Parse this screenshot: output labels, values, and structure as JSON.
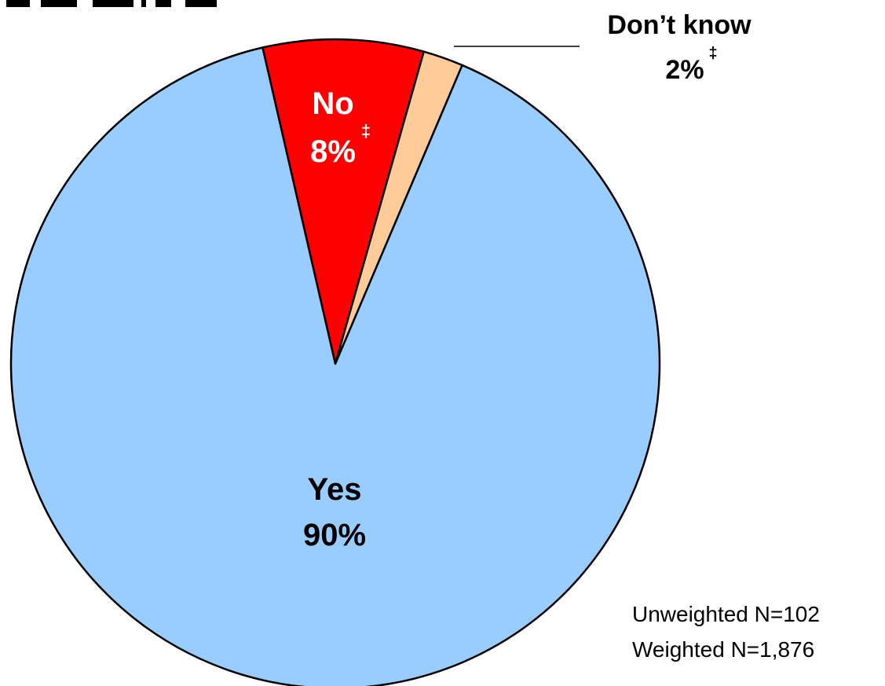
{
  "chart_data": {
    "type": "pie",
    "slices": [
      {
        "label": "Yes",
        "value_label": "90%",
        "value": 90,
        "color": "#99ccff"
      },
      {
        "label": "No",
        "value_label": "8%",
        "footnote_mark": "‡",
        "value": 8,
        "color": "#ff0000"
      },
      {
        "label": "Don’t know",
        "value_label": "2%",
        "footnote_mark": "‡",
        "value": 2,
        "color": "#ffcc99"
      }
    ],
    "notes": [
      "Unweighted N=102",
      "Weighted N=1,876"
    ]
  }
}
